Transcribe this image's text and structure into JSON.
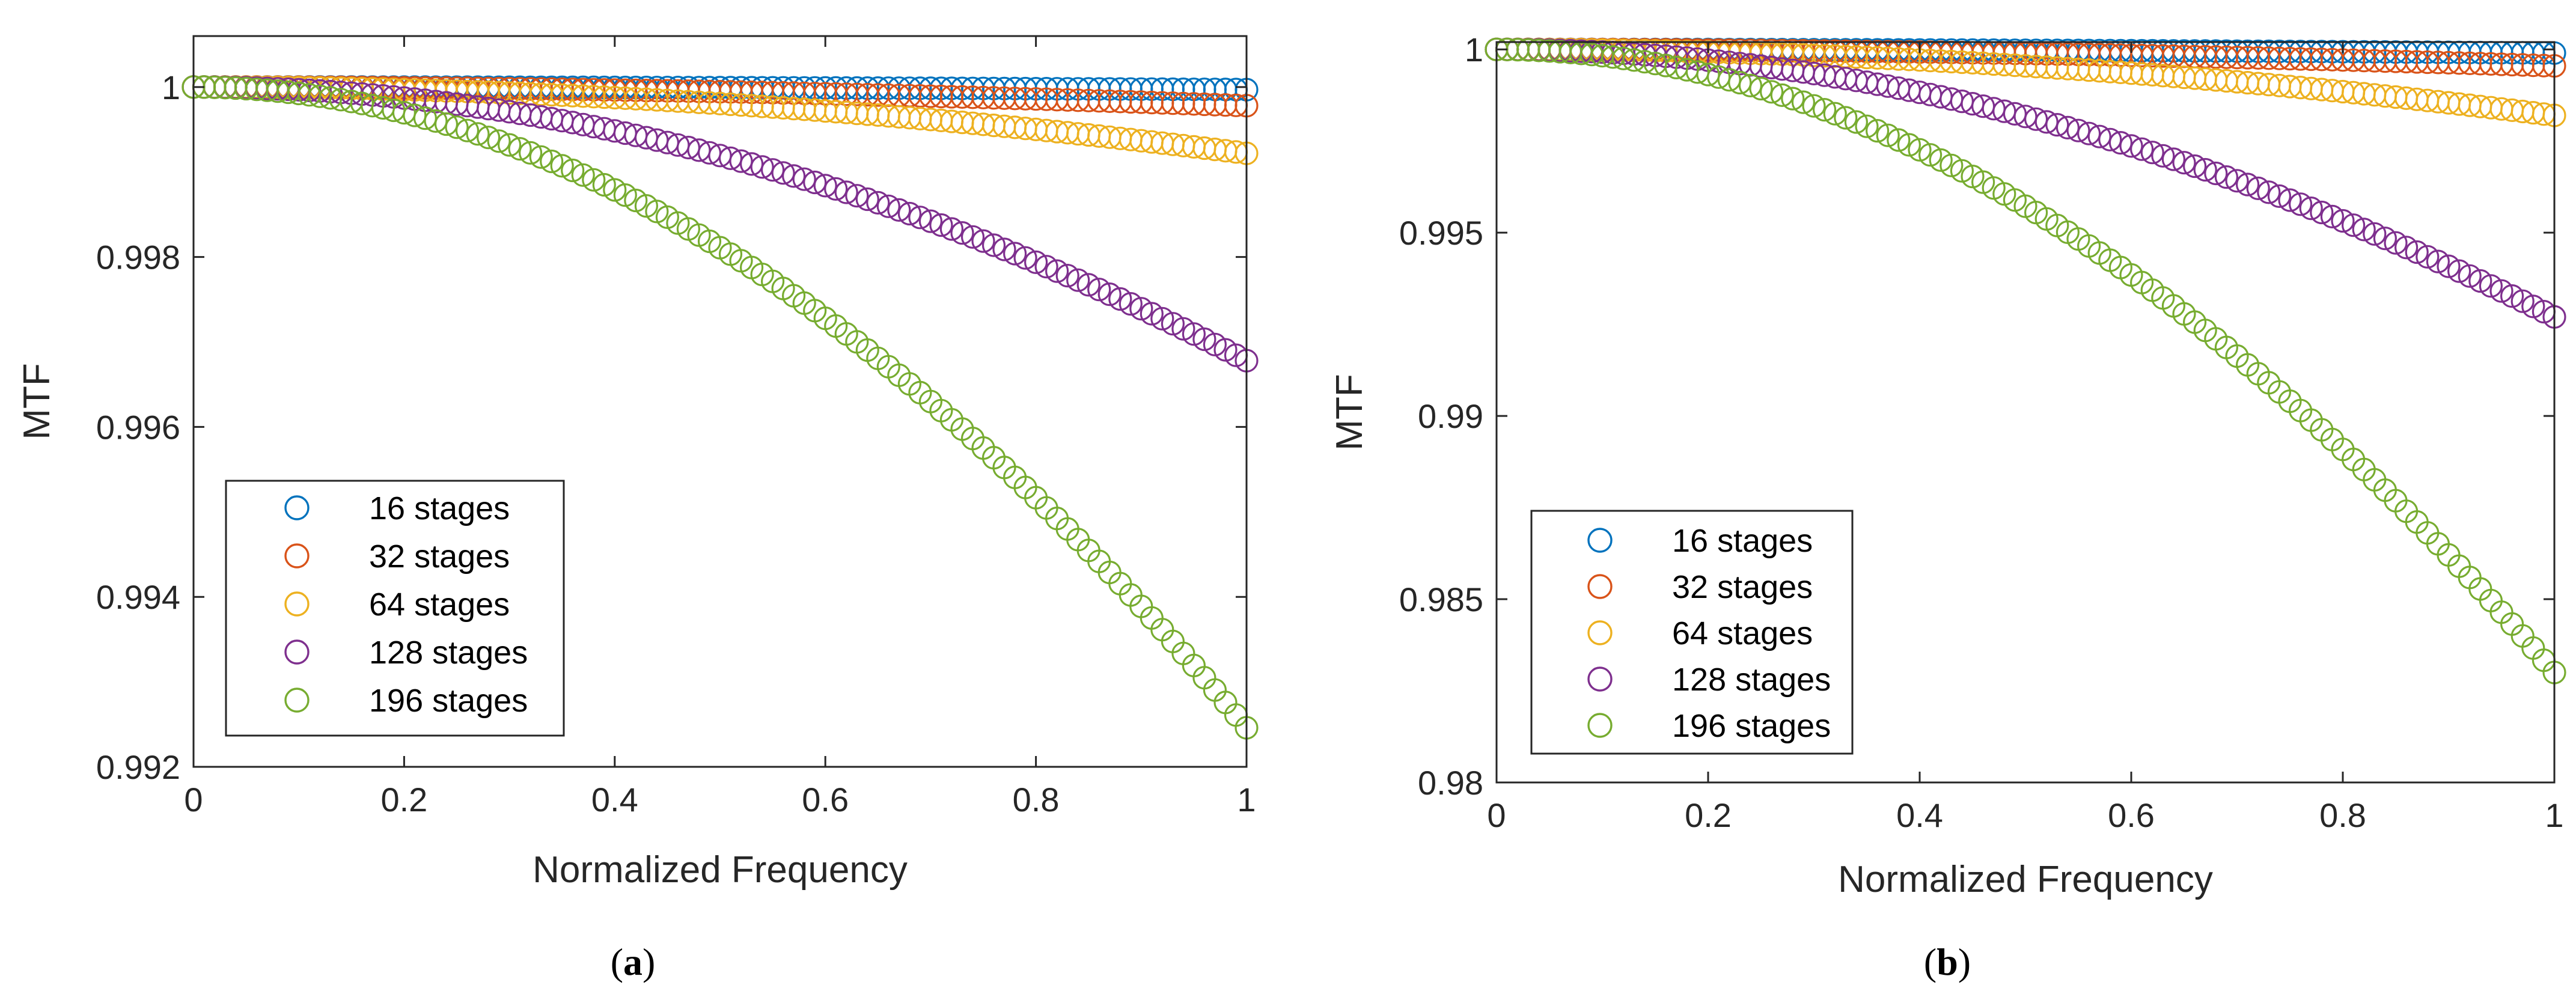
{
  "chart_data": [
    {
      "type": "scatter",
      "panel_label": "a",
      "title": "",
      "xlabel": "Normalized Frequency",
      "ylabel": "MTF",
      "xlim": [
        0,
        1
      ],
      "ylim": [
        0.992,
        1.0006
      ],
      "xticks": [
        0,
        0.2,
        0.4,
        0.6,
        0.8,
        1
      ],
      "xtick_labels": [
        "0",
        "0.2",
        "0.4",
        "0.6",
        "0.8",
        "1"
      ],
      "yticks": [
        0.992,
        0.994,
        0.996,
        0.998,
        1
      ],
      "ytick_labels": [
        "0.992",
        "0.994",
        "0.996",
        "0.998",
        "1"
      ],
      "legend_position": "lower-left",
      "points_per_series": 101,
      "series": [
        {
          "name": "16 stages",
          "color": "#0072BD",
          "mtf_at_1": 0.99997
        },
        {
          "name": "32 stages",
          "color": "#D95319",
          "mtf_at_1": 0.99978
        },
        {
          "name": "64 stages",
          "color": "#EDB120",
          "mtf_at_1": 0.99922
        },
        {
          "name": "128 stages",
          "color": "#7E2F8E",
          "mtf_at_1": 0.99678
        },
        {
          "name": "196 stages",
          "color": "#77AC30",
          "mtf_at_1": 0.99246
        }
      ]
    },
    {
      "type": "scatter",
      "panel_label": "b",
      "title": "",
      "xlabel": "Normalized Frequency",
      "ylabel": "MTF",
      "xlim": [
        0,
        1
      ],
      "ylim": [
        0.98,
        1.0002
      ],
      "xticks": [
        0,
        0.2,
        0.4,
        0.6,
        0.8,
        1
      ],
      "xtick_labels": [
        "0",
        "0.2",
        "0.4",
        "0.6",
        "0.8",
        "1"
      ],
      "yticks": [
        0.98,
        0.985,
        0.99,
        0.995,
        1
      ],
      "ytick_labels": [
        "0.98",
        "0.985",
        "0.99",
        "0.995",
        "1"
      ],
      "legend_position": "lower-left",
      "points_per_series": 101,
      "series": [
        {
          "name": "16 stages",
          "color": "#0072BD",
          "mtf_at_1": 0.9999
        },
        {
          "name": "32 stages",
          "color": "#D95319",
          "mtf_at_1": 0.99955
        },
        {
          "name": "64 stages",
          "color": "#EDB120",
          "mtf_at_1": 0.9982
        },
        {
          "name": "128 stages",
          "color": "#7E2F8E",
          "mtf_at_1": 0.9927
        },
        {
          "name": "196 stages",
          "color": "#77AC30",
          "mtf_at_1": 0.983
        }
      ]
    }
  ]
}
